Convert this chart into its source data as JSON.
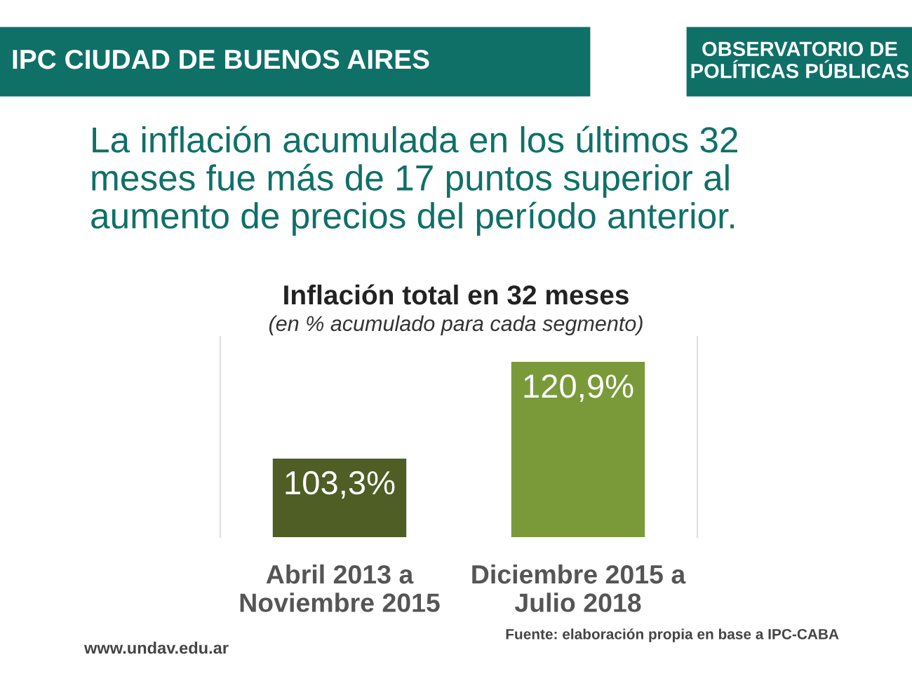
{
  "chart_data": {
    "type": "bar",
    "title": "Inflación total en 32 meses",
    "subtitle": "(en % acumulado para cada segmento)",
    "categories": [
      "Abril 2013 a\nNoviembre 2015",
      "Diciembre 2015 a\nJulio 2018"
    ],
    "values": [
      103.3,
      120.9
    ],
    "colors": [
      "#4e5e24",
      "#7a9a3a"
    ],
    "value_labels": [
      "103,3%",
      "120,9%"
    ],
    "ylim": [
      89,
      125.5
    ],
    "annotations": [
      "IPC CIUDAD DE BUENOS AIRES",
      "OBSERVATORIO DE\nPOLÍTICAS PÚBLICAS",
      "La inflación acumulada en los últimos 32\nmeses fue más de 17 puntos superior al\naumento de precios del período anterior.",
      "www.undav.edu.ar",
      "Fuente: elaboración propia en base a IPC-CABA"
    ]
  }
}
